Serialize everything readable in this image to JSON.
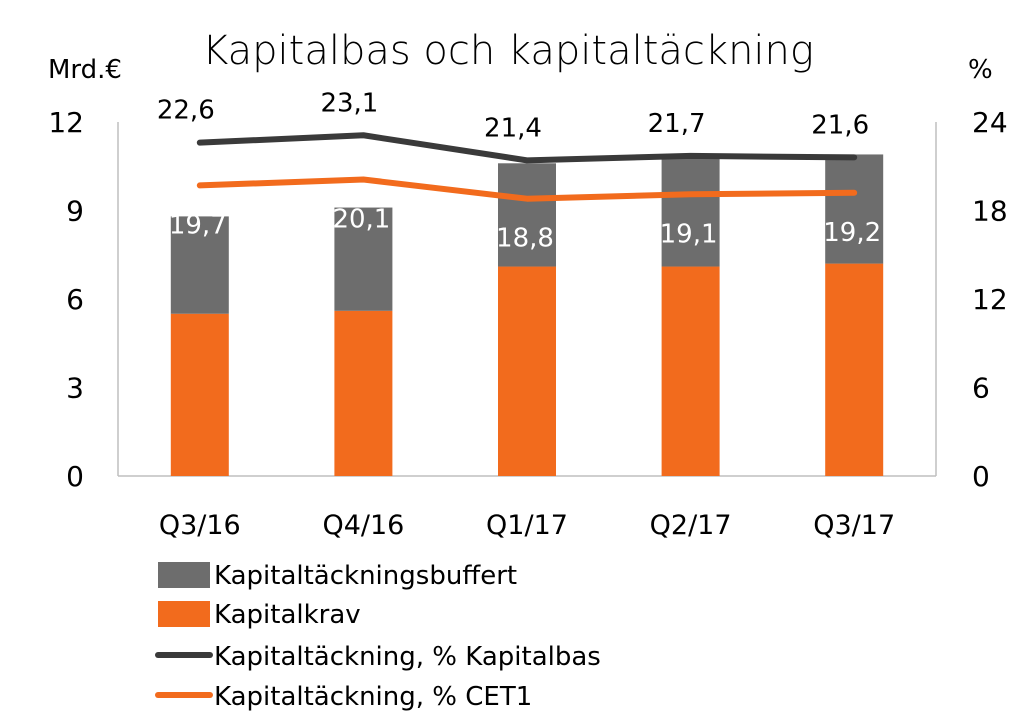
{
  "chart_data": {
    "type": "bar",
    "title": "Kapitalbas och kapitaltäckning",
    "left_axis_unit": "Mrd.€",
    "right_axis_unit": "%",
    "categories": [
      "Q3/16",
      "Q4/16",
      "Q1/17",
      "Q2/17",
      "Q3/17"
    ],
    "left_ylim": [
      0,
      12
    ],
    "left_ticks": [
      "0",
      "3",
      "6",
      "9",
      "12"
    ],
    "right_ylim": [
      0,
      24
    ],
    "right_ticks": [
      "0",
      "6",
      "12",
      "18",
      "24"
    ],
    "stacked": true,
    "grid": false,
    "legend_position": "bottom",
    "series": [
      {
        "name": "Kapitaltäckningsbuffert",
        "kind": "bar",
        "axis": "left",
        "color": "#6d6d6d",
        "values": [
          3.3,
          3.5,
          3.5,
          3.8,
          3.7
        ]
      },
      {
        "name": "Kapitalkrav",
        "kind": "bar",
        "axis": "left",
        "color": "#f26b1d",
        "values": [
          5.5,
          5.6,
          7.1,
          7.1,
          7.2
        ]
      },
      {
        "name": "Kapitaltäckning, % Kapitalbas",
        "kind": "line",
        "axis": "right",
        "color": "#3a3a3a",
        "values": [
          22.6,
          23.1,
          21.4,
          21.7,
          21.6
        ],
        "labels": [
          "22,6",
          "23,1",
          "21,4",
          "21,7",
          "21,6"
        ]
      },
      {
        "name": "Kapitaltäckning, %  CET1",
        "kind": "line",
        "axis": "right",
        "color": "#f26b1d",
        "values": [
          19.7,
          20.1,
          18.8,
          19.1,
          19.2
        ],
        "labels": [
          "19,7",
          "20,1",
          "18,8",
          "19,1",
          "19,2"
        ]
      }
    ]
  }
}
